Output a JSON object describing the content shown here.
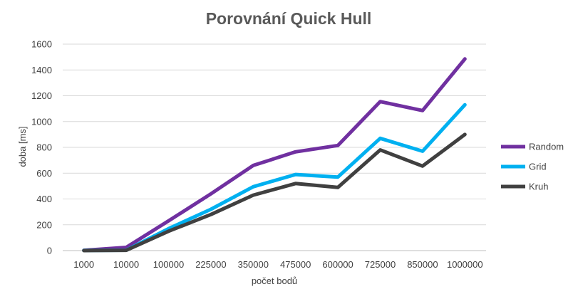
{
  "chart_data": {
    "type": "line",
    "title": "Porovnání Quick Hull",
    "xlabel": "počet bodů",
    "ylabel": "doba [ms]",
    "categories": [
      "1000",
      "10000",
      "100000",
      "225000",
      "350000",
      "475000",
      "600000",
      "725000",
      "850000",
      "1000000"
    ],
    "ylim": [
      0,
      1600
    ],
    "yticks": [
      0,
      200,
      400,
      600,
      800,
      1000,
      1200,
      1400,
      1600
    ],
    "grid": true,
    "legend_position": "right",
    "series": [
      {
        "name": "Random",
        "color": "#7030a0",
        "values": [
          2,
          25,
          230,
          440,
          660,
          765,
          815,
          1155,
          1085,
          1485
        ]
      },
      {
        "name": "Grid",
        "color": "#00b0f0",
        "values": [
          1,
          3,
          170,
          320,
          495,
          590,
          570,
          870,
          770,
          1130
        ]
      },
      {
        "name": "Kruh",
        "color": "#404040",
        "values": [
          0,
          2,
          150,
          280,
          430,
          520,
          490,
          780,
          655,
          900
        ]
      }
    ]
  }
}
